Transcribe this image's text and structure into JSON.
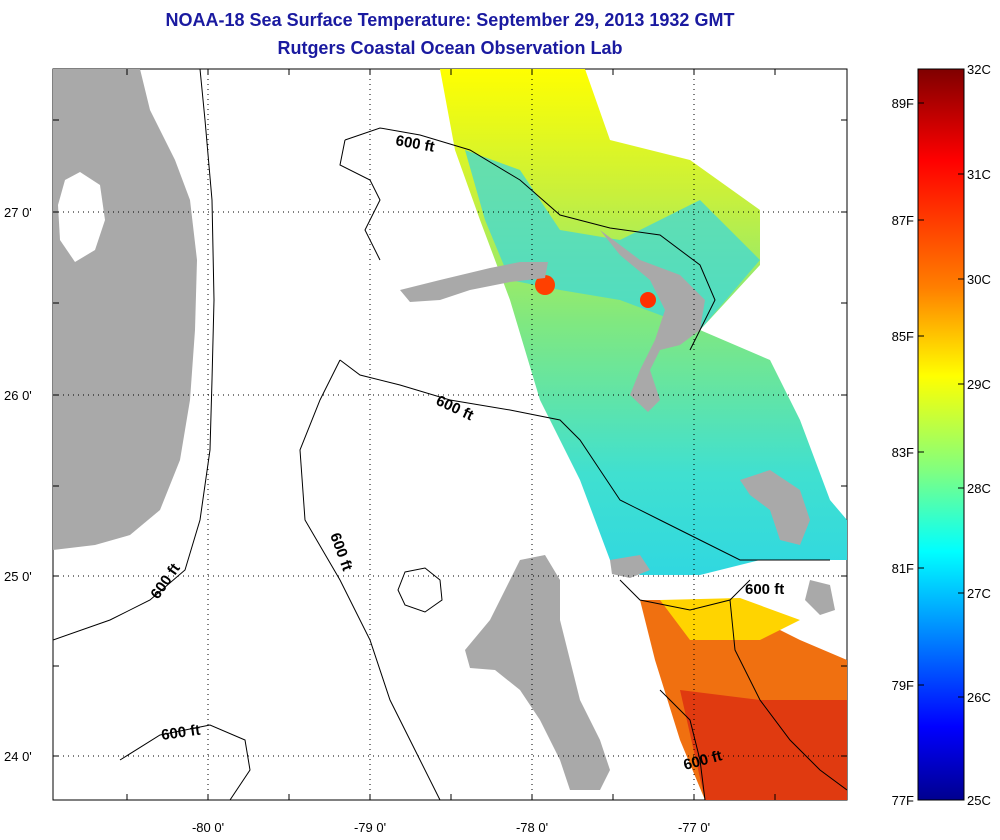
{
  "title": "NOAA-18 Sea Surface Temperature:  September 29, 2013 1932 GMT",
  "subtitle": "Rutgers Coastal Ocean Observation Lab",
  "axes": {
    "x_ticks": [
      "-80 0'",
      "-79 0'",
      "-78 0'",
      "-77 0'"
    ],
    "y_ticks": [
      "27 0'",
      "26 0'",
      "25 0'",
      "24 0'"
    ]
  },
  "contour_labels": [
    "600 ft",
    "600 ft",
    "600 ft",
    "600 ft",
    "600 ft",
    "600 ft"
  ],
  "colorbar": {
    "celsius_labels": [
      "32C",
      "31C",
      "30C",
      "29C",
      "28C",
      "27C",
      "26C",
      "25C"
    ],
    "fahrenheit_labels": [
      "89F",
      "87F",
      "85F",
      "83F",
      "81F",
      "79F",
      "77F"
    ],
    "colors": [
      "#7f0000",
      "#ff0000",
      "#ff8000",
      "#ffff00",
      "#80ff80",
      "#00ffff",
      "#0080ff",
      "#0000ff",
      "#00008f"
    ]
  },
  "colors": {
    "land": "#a9a9a9",
    "title": "#1a1aa0"
  }
}
